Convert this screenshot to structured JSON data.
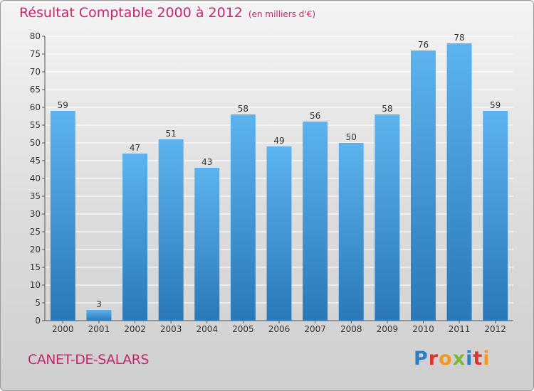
{
  "header": {
    "title": "Résultat Comptable 2000 à 2012",
    "subtitle": "(en milliers d'€)"
  },
  "footer": {
    "commune": "CANET-DE-SALARS",
    "logo_text": "Proxiti"
  },
  "colors": {
    "bar_top": "#5cb3ee",
    "bar_bottom": "#2a78b8",
    "title": "#c8266b",
    "grid": "#ffffff"
  },
  "chart_data": {
    "type": "bar",
    "title": "Résultat Comptable 2000 à 2012",
    "subtitle": "(en milliers d'€)",
    "categories": [
      "2000",
      "2001",
      "2002",
      "2003",
      "2004",
      "2005",
      "2006",
      "2007",
      "2008",
      "2009",
      "2010",
      "2011",
      "2012"
    ],
    "values": [
      59,
      3,
      47,
      51,
      43,
      58,
      49,
      56,
      50,
      58,
      76,
      78,
      59
    ],
    "data_labels": [
      "59",
      "3",
      "47",
      "51",
      "43",
      "58",
      "49",
      "56",
      "50",
      "58",
      "76",
      "78",
      "59"
    ],
    "yticks": [
      "0",
      "5",
      "10",
      "15",
      "20",
      "25",
      "30",
      "35",
      "40",
      "45",
      "50",
      "55",
      "60",
      "65",
      "70",
      "75",
      "80"
    ],
    "ylim": [
      0,
      80
    ],
    "grid": true,
    "xlabel": "",
    "ylabel": ""
  }
}
